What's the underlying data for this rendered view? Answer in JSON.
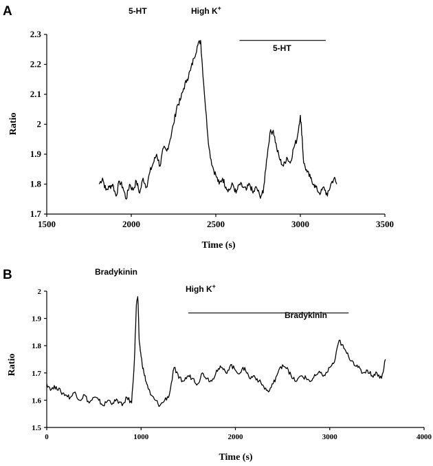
{
  "chart_data": [
    {
      "panel": "A",
      "type": "line",
      "xlabel": "Time (s)",
      "ylabel": "Ratio",
      "xlim": [
        1500,
        3500
      ],
      "ylim": [
        1.7,
        2.3
      ],
      "xticks": [
        "1500",
        "2000",
        "2500",
        "3000",
        "3500"
      ],
      "yticks": [
        "1.7",
        "1.8",
        "1.9",
        "2",
        "2.1",
        "2.2",
        "2.3"
      ],
      "annotations": [
        "5-HT",
        "High K",
        "+",
        "5-HT"
      ],
      "series": [
        {
          "x": [
            1810,
            1830,
            1850,
            1870,
            1890,
            1910,
            1930,
            1950,
            1970,
            1990,
            2010,
            2030,
            2050,
            2070,
            2090,
            2110,
            2130,
            2150,
            2170,
            2190,
            2210,
            2230,
            2250,
            2270,
            2290,
            2310,
            2330,
            2350,
            2370,
            2390,
            2410,
            2420,
            2440,
            2460,
            2480,
            2500,
            2520,
            2540,
            2560,
            2580,
            2600,
            2620,
            2640,
            2660,
            2680,
            2700,
            2720,
            2740,
            2760,
            2780,
            2800,
            2820,
            2840,
            2860,
            2880,
            2900,
            2920,
            2940,
            2960,
            2980,
            3000,
            3010,
            3020,
            3040,
            3060,
            3080,
            3100,
            3120,
            3140,
            3160,
            3180,
            3200,
            3215
          ],
          "y": [
            1.8,
            1.82,
            1.78,
            1.79,
            1.8,
            1.76,
            1.81,
            1.79,
            1.75,
            1.8,
            1.78,
            1.81,
            1.77,
            1.82,
            1.79,
            1.84,
            1.87,
            1.9,
            1.86,
            1.92,
            1.91,
            1.95,
            2.0,
            2.06,
            2.08,
            2.12,
            2.15,
            2.18,
            2.22,
            2.26,
            2.28,
            2.2,
            2.05,
            1.92,
            1.86,
            1.83,
            1.8,
            1.82,
            1.79,
            1.78,
            1.8,
            1.77,
            1.8,
            1.79,
            1.78,
            1.8,
            1.77,
            1.79,
            1.76,
            1.77,
            1.88,
            1.97,
            1.98,
            1.92,
            1.88,
            1.86,
            1.89,
            1.87,
            1.92,
            1.95,
            2.03,
            1.96,
            1.87,
            1.84,
            1.82,
            1.8,
            1.78,
            1.77,
            1.79,
            1.76,
            1.8,
            1.82,
            1.8
          ]
        }
      ],
      "bar": {
        "x": [
          2640,
          3150
        ],
        "y": 2.28
      }
    },
    {
      "panel": "B",
      "type": "line",
      "xlabel": "Time (s)",
      "ylabel": "Ratio",
      "xlim": [
        0,
        4000
      ],
      "ylim": [
        1.5,
        2.0
      ],
      "xticks": [
        "0",
        "1000",
        "2000",
        "3000",
        "4000"
      ],
      "yticks": [
        "1.5",
        "1.6",
        "1.7",
        "1.8",
        "1.9",
        "2"
      ],
      "annotations": [
        "Bradykinin",
        "High K",
        "+",
        "Bradykinin"
      ],
      "series": [
        {
          "x": [
            0,
            50,
            100,
            150,
            200,
            250,
            300,
            350,
            400,
            450,
            500,
            550,
            600,
            650,
            700,
            750,
            800,
            850,
            900,
            930,
            950,
            965,
            980,
            1000,
            1030,
            1060,
            1100,
            1150,
            1200,
            1250,
            1300,
            1350,
            1400,
            1450,
            1500,
            1550,
            1600,
            1650,
            1700,
            1750,
            1800,
            1850,
            1900,
            1950,
            2000,
            2050,
            2100,
            2150,
            2200,
            2250,
            2300,
            2350,
            2400,
            2450,
            2500,
            2550,
            2600,
            2650,
            2700,
            2750,
            2800,
            2850,
            2900,
            2950,
            3000,
            3050,
            3100,
            3150,
            3200,
            3250,
            3300,
            3350,
            3400,
            3450,
            3500,
            3550,
            3590
          ],
          "y": [
            1.66,
            1.64,
            1.65,
            1.63,
            1.62,
            1.61,
            1.63,
            1.6,
            1.62,
            1.59,
            1.61,
            1.6,
            1.58,
            1.6,
            1.59,
            1.6,
            1.58,
            1.61,
            1.59,
            1.75,
            1.95,
            1.98,
            1.82,
            1.76,
            1.7,
            1.66,
            1.62,
            1.6,
            1.58,
            1.6,
            1.62,
            1.72,
            1.68,
            1.67,
            1.69,
            1.68,
            1.66,
            1.7,
            1.68,
            1.67,
            1.71,
            1.72,
            1.7,
            1.73,
            1.71,
            1.7,
            1.72,
            1.68,
            1.69,
            1.67,
            1.65,
            1.63,
            1.66,
            1.7,
            1.73,
            1.72,
            1.68,
            1.67,
            1.69,
            1.68,
            1.67,
            1.69,
            1.7,
            1.69,
            1.72,
            1.74,
            1.82,
            1.79,
            1.76,
            1.74,
            1.72,
            1.7,
            1.71,
            1.69,
            1.7,
            1.68,
            1.75
          ]
        }
      ],
      "bar": {
        "x": [
          1500,
          3200
        ],
        "y": 1.92
      }
    }
  ],
  "panels": {
    "A": {
      "letter": "A",
      "annot1": "5-HT",
      "annot2": "High K",
      "annot2_sup": "+",
      "annot3": "5-HT"
    },
    "B": {
      "letter": "B",
      "annot1": "Bradykinin",
      "annot2": "High K",
      "annot2_sup": "+",
      "annot3": "Bradykinin"
    }
  }
}
